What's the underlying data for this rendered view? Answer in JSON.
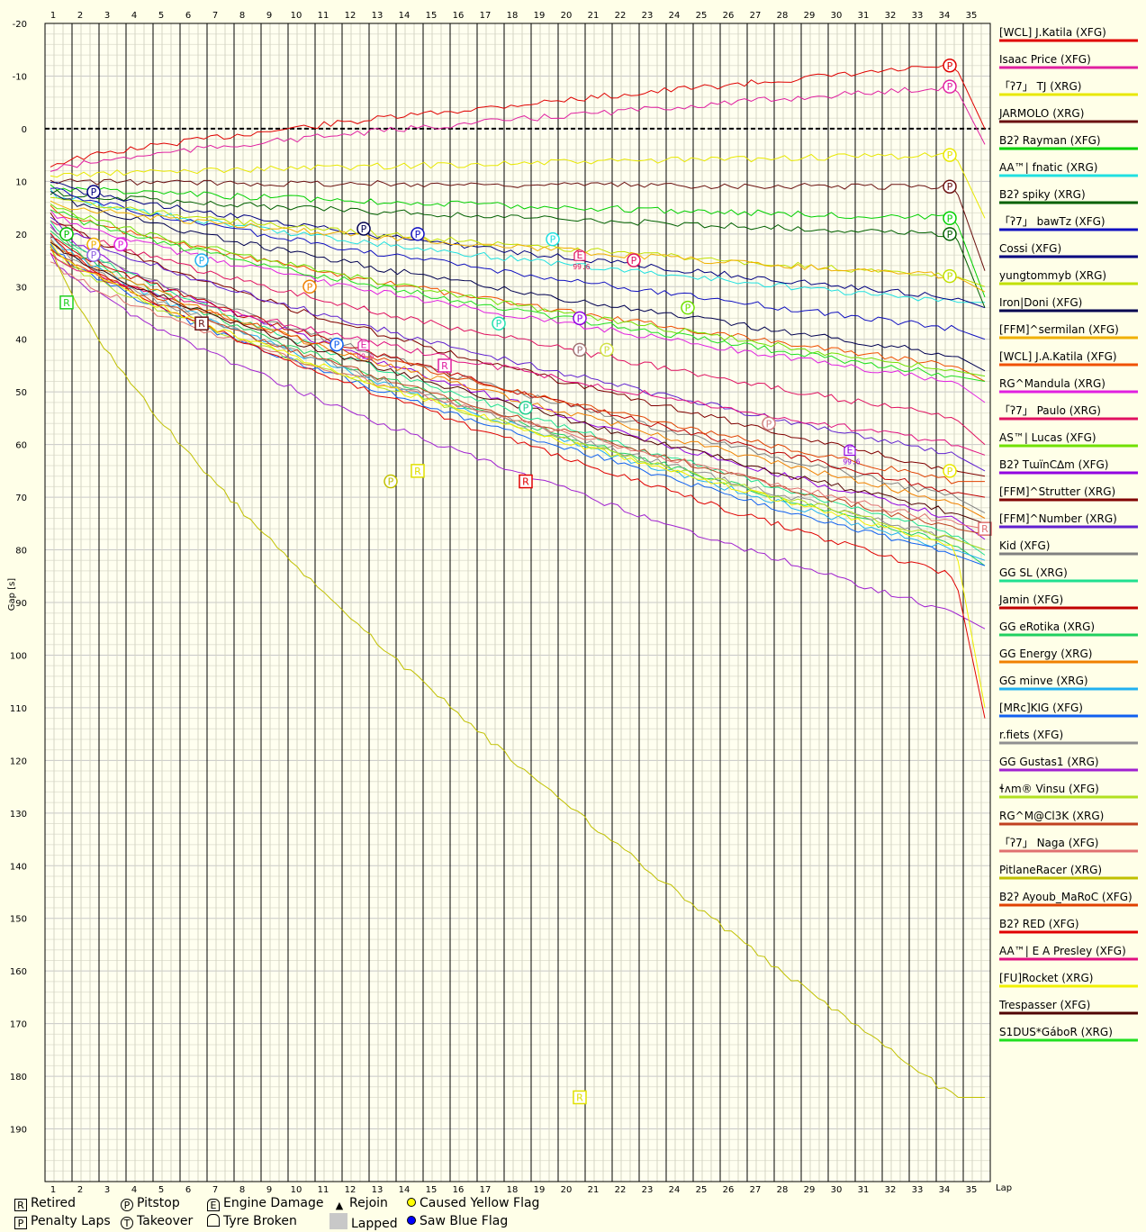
{
  "chart_data": {
    "type": "line",
    "xlabel": "Lap",
    "ylabel": "Gap [s]",
    "laps": [
      1,
      2,
      3,
      4,
      5,
      6,
      7,
      8,
      9,
      10,
      11,
      12,
      13,
      14,
      15,
      16,
      17,
      18,
      19,
      20,
      21,
      22,
      23,
      24,
      25,
      26,
      27,
      28,
      29,
      30,
      31,
      32,
      33,
      34,
      35
    ],
    "ylim": [
      -20,
      200
    ],
    "yticks": [
      -20,
      -10,
      0,
      10,
      20,
      30,
      40,
      50,
      60,
      70,
      80,
      90,
      100,
      110,
      120,
      130,
      140,
      150,
      160,
      170,
      180,
      190
    ],
    "y_inverted": true,
    "zero_line_dashed": true,
    "grid": true,
    "series": [
      {
        "name": "[WCL] J.Katila (XFG)",
        "color": "#e00000",
        "start": 7,
        "end": -12,
        "final": 0
      },
      {
        "name": "Isaac Price (XFG)",
        "color": "#e020a0",
        "start": 8,
        "end": -8,
        "final": 3
      },
      {
        "name": "「ʔ7」 TJ (XRG)",
        "color": "#e8e800",
        "start": 9,
        "end": 5,
        "final": 17
      },
      {
        "name": "JARMOLO (XRG)",
        "color": "#6a1010",
        "start": 10,
        "end": 11,
        "final": 27
      },
      {
        "name": "B2ʔ Rayman (XFG)",
        "color": "#00d000",
        "start": 11,
        "end": 17,
        "final": 32
      },
      {
        "name": "AA™| fnatic (XRG)",
        "color": "#20e0e0",
        "start": 12,
        "end": 33,
        "final": 33
      },
      {
        "name": "B2ʔ spiky (XRG)",
        "color": "#006000",
        "start": 12,
        "end": 20,
        "final": 34
      },
      {
        "name": "「ʔ7」 bawTz (XFG)",
        "color": "#1010c0",
        "start": 11,
        "end": 38,
        "final": 40
      },
      {
        "name": "Cossi (XFG)",
        "color": "#000080",
        "start": 10,
        "end": 32,
        "final": 34
      },
      {
        "name": "yungtommyb (XRG)",
        "color": "#c0e000",
        "start": 13,
        "end": 28,
        "final": 30
      },
      {
        "name": "Iron|Doni (XFG)",
        "color": "#000050",
        "start": 12,
        "end": 43,
        "final": 46
      },
      {
        "name": "[FFM]^sermilan (XFG)",
        "color": "#f0b000",
        "start": 14,
        "end": 28,
        "final": 31
      },
      {
        "name": "[WCL] J.A.Katila (XFG)",
        "color": "#f05000",
        "start": 15,
        "end": 45,
        "final": 48
      },
      {
        "name": "RG^Mandula (XRG)",
        "color": "#e020e0",
        "start": 16,
        "end": 48,
        "final": 52
      },
      {
        "name": "「ʔ7」 Paulo (XRG)",
        "color": "#e01060",
        "start": 17,
        "end": 55,
        "final": 60
      },
      {
        "name": "AS™| Lucas (XFG)",
        "color": "#70e000",
        "start": 14,
        "end": 46,
        "final": 47
      },
      {
        "name": "B2ʔ TɯïnC∆m (XFG)",
        "color": "#9000e0",
        "start": 18,
        "end": 74,
        "final": 78
      },
      {
        "name": "[FFM]^Strutter (XRG)",
        "color": "#800000",
        "start": 16,
        "end": 65,
        "final": 66
      },
      {
        "name": "[FFM]^Number (XRG)",
        "color": "#6020d0",
        "start": 17,
        "end": 62,
        "final": 65
      },
      {
        "name": "Kid (XFG)",
        "color": "#808080",
        "start": 19,
        "end": 70,
        "final": 73
      },
      {
        "name": "GG SL (XRG)",
        "color": "#20e090",
        "start": 18,
        "end": 77,
        "final": 81
      },
      {
        "name": "Jamin (XFG)",
        "color": "#c00000",
        "start": 20,
        "end": 69,
        "final": 70
      },
      {
        "name": "GG eRotika (XRG)",
        "color": "#20d060",
        "start": 19,
        "end": 79,
        "final": 83
      },
      {
        "name": "GG Energy (XRG)",
        "color": "#f08000",
        "start": 21,
        "end": 71,
        "final": 74
      },
      {
        "name": "GG minve (XRG)",
        "color": "#20b0f0",
        "start": 20,
        "end": 80,
        "final": 82
      },
      {
        "name": "[MRc]KIG (XFG)",
        "color": "#1060f0",
        "start": 22,
        "end": 81,
        "final": 83
      },
      {
        "name": "r.fiets (XFG)",
        "color": "#909090",
        "start": 21,
        "end": 78,
        "final": 80
      },
      {
        "name": "GG Gustas1 (XRG)",
        "color": "#a020d0",
        "start": 24,
        "end": 92,
        "final": 95
      },
      {
        "name": "ɬʌm® Vinsu (XFG)",
        "color": "#b0e020",
        "start": 23,
        "end": 78,
        "final": 80
      },
      {
        "name": "RG^M@Cl3K (XRG)",
        "color": "#c04020",
        "start": 22,
        "end": 76,
        "final": 77
      },
      {
        "name": "「ʔ7」 Naga (XFG)",
        "color": "#e07070",
        "start": 25,
        "end": 75,
        "final": 76
      },
      {
        "name": "PitlaneRacer (XRG)",
        "color": "#c0c000",
        "start": 22,
        "end": 184,
        "final": 184
      },
      {
        "name": "B2ʔ Ayoub_MaRoC (XFG)",
        "color": "#e04000",
        "start": 23,
        "end": 67,
        "final": 67
      },
      {
        "name": "B2ʔ RED (XFG)",
        "color": "#e00000",
        "start": 20,
        "end": 85,
        "final": 112
      },
      {
        "name": "AA™| E A Presley (XFG)",
        "color": "#e01080",
        "start": 24,
        "end": 60,
        "final": 62
      },
      {
        "name": "[FU]Rocket (XRG)",
        "color": "#f0f000",
        "start": 22,
        "end": 79,
        "final": 110
      },
      {
        "name": "Trespasser (XFG)",
        "color": "#500000",
        "start": 21,
        "end": 73,
        "final": 75
      },
      {
        "name": "S1DUS*GáboR (XRG)",
        "color": "#20e020",
        "start": 15,
        "end": 47,
        "final": 48
      }
    ],
    "events": [
      {
        "type": "P",
        "lap": 34,
        "gap": -12,
        "color": "#e00000"
      },
      {
        "type": "P",
        "lap": 34,
        "gap": -8,
        "color": "#e020a0"
      },
      {
        "type": "P",
        "lap": 34,
        "gap": 5,
        "color": "#e8e800"
      },
      {
        "type": "P",
        "lap": 34,
        "gap": 11,
        "color": "#6a1010"
      },
      {
        "type": "P",
        "lap": 34,
        "gap": 17,
        "color": "#00d000"
      },
      {
        "type": "P",
        "lap": 34,
        "gap": 20,
        "color": "#006000"
      },
      {
        "type": "P",
        "lap": 34,
        "gap": 28,
        "color": "#c0e000"
      },
      {
        "type": "P",
        "lap": 34,
        "gap": 65,
        "color": "#e8e800"
      },
      {
        "type": "P",
        "lap": 2.3,
        "gap": 12,
        "color": "#000080"
      },
      {
        "type": "P",
        "lap": 1.3,
        "gap": 20,
        "color": "#00c000"
      },
      {
        "type": "P",
        "lap": 2.3,
        "gap": 22,
        "color": "#f0b000"
      },
      {
        "type": "P",
        "lap": 2.3,
        "gap": 24,
        "color": "#9060e0"
      },
      {
        "type": "P",
        "lap": 3.3,
        "gap": 22,
        "color": "#e020e0"
      },
      {
        "type": "P",
        "lap": 6.3,
        "gap": 25,
        "color": "#20b0f0"
      },
      {
        "type": "P",
        "lap": 10.3,
        "gap": 30,
        "color": "#f08000"
      },
      {
        "type": "P",
        "lap": 11.3,
        "gap": 41,
        "color": "#1060f0"
      },
      {
        "type": "P",
        "lap": 12.3,
        "gap": 19,
        "color": "#000050"
      },
      {
        "type": "P",
        "lap": 13.3,
        "gap": 67,
        "color": "#c0c000"
      },
      {
        "type": "P",
        "lap": 14.3,
        "gap": 20,
        "color": "#1010c0"
      },
      {
        "type": "P",
        "lap": 17.3,
        "gap": 37,
        "color": "#20e0b0"
      },
      {
        "type": "P",
        "lap": 18.3,
        "gap": 53,
        "color": "#20d090"
      },
      {
        "type": "P",
        "lap": 19.3,
        "gap": 21,
        "color": "#20e0e0"
      },
      {
        "type": "P",
        "lap": 20.3,
        "gap": 36,
        "color": "#9000e0"
      },
      {
        "type": "P",
        "lap": 20.3,
        "gap": 42,
        "color": "#a07070"
      },
      {
        "type": "P",
        "lap": 21.3,
        "gap": 42,
        "color": "#d0e040"
      },
      {
        "type": "P",
        "lap": 22.3,
        "gap": 25,
        "color": "#e01060"
      },
      {
        "type": "P",
        "lap": 24.3,
        "gap": 34,
        "color": "#70e000"
      },
      {
        "type": "P",
        "lap": 27.3,
        "gap": 56,
        "color": "#d08080"
      },
      {
        "type": "R",
        "lap": 1.3,
        "gap": 33,
        "color": "#20d020"
      },
      {
        "type": "R",
        "lap": 6.3,
        "gap": 37,
        "color": "#6a1010"
      },
      {
        "type": "R",
        "lap": 14.3,
        "gap": 65,
        "color": "#e0e000"
      },
      {
        "type": "R",
        "lap": 15.3,
        "gap": 45,
        "color": "#e020a0"
      },
      {
        "type": "R",
        "lap": 18.3,
        "gap": 67,
        "color": "#e00000"
      },
      {
        "type": "R",
        "lap": 20.3,
        "gap": 184,
        "color": "#e0e000"
      },
      {
        "type": "R",
        "lap": 35.3,
        "gap": 76,
        "color": "#e07070"
      },
      {
        "type": "E",
        "lap": 12.3,
        "gap": 41,
        "color": "#e020a0",
        "label": "99.6"
      },
      {
        "type": "E",
        "lap": 20.3,
        "gap": 24,
        "color": "#e01060",
        "label": "99.6"
      },
      {
        "type": "E",
        "lap": 30.3,
        "gap": 61,
        "color": "#9000e0",
        "label": "99.6"
      }
    ]
  },
  "key": {
    "retired": "Retired",
    "penalty": "Penalty Laps",
    "pitstop": "Pitstop",
    "takeover": "Takeover",
    "engine": "Engine Damage",
    "tyre": "Tyre Broken",
    "rejoin": "Rejoin",
    "lapped": "Lapped",
    "yellow": "Caused Yellow Flag",
    "blue": "Saw Blue Flag",
    "sym_r": "R",
    "sym_p": "P",
    "sym_t": "T",
    "sym_e": "E",
    "sym_rejoin": "▲"
  }
}
